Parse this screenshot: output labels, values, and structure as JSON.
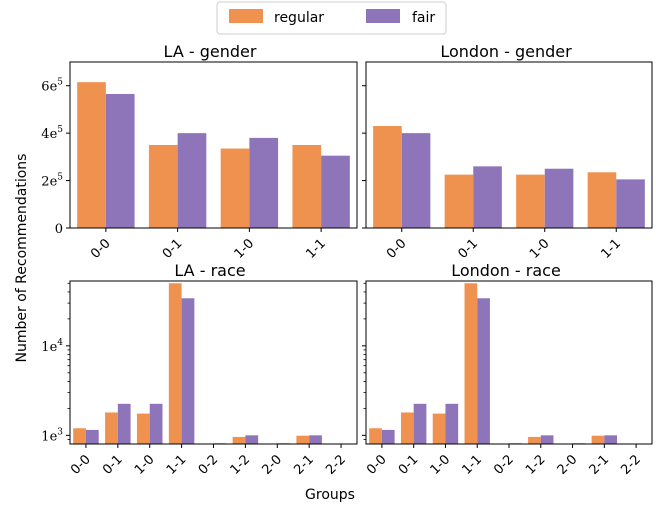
{
  "colors": {
    "regular": "#f0924f",
    "fair": "#8e75b9"
  },
  "chart_data": [
    {
      "type": "bar",
      "title": "LA - gender",
      "categories": [
        "0-0",
        "0-1",
        "1-0",
        "1-1"
      ],
      "series": [
        {
          "name": "regular",
          "values": [
            615000,
            350000,
            335000,
            350000
          ]
        },
        {
          "name": "fair",
          "values": [
            565000,
            400000,
            380000,
            305000
          ]
        }
      ],
      "ylim": [
        0,
        700000
      ],
      "yscale": "linear",
      "yticks": [
        0,
        200000,
        400000,
        600000
      ],
      "yticklabels": [
        "0",
        "2e",
        "4e",
        "6e"
      ],
      "ytickexp": [
        "",
        "5",
        "5",
        "5"
      ],
      "legend": "top-center"
    },
    {
      "type": "bar",
      "title": "London - gender",
      "categories": [
        "0-0",
        "0-1",
        "1-0",
        "1-1"
      ],
      "series": [
        {
          "name": "regular",
          "values": [
            430000,
            225000,
            225000,
            235000
          ]
        },
        {
          "name": "fair",
          "values": [
            400000,
            260000,
            250000,
            205000
          ]
        }
      ],
      "ylim": [
        0,
        700000
      ],
      "yscale": "linear",
      "sharey": true
    },
    {
      "type": "bar",
      "title": "LA - race",
      "categories": [
        "0-0",
        "0-1",
        "1-0",
        "1-1",
        "0-2",
        "1-2",
        "2-0",
        "2-1",
        "2-2"
      ],
      "series": [
        {
          "name": "regular",
          "values": [
            1200,
            1800,
            1750,
            50000,
            810,
            960,
            810,
            990,
            800
          ]
        },
        {
          "name": "fair",
          "values": [
            1150,
            2250,
            2250,
            34000,
            815,
            1000,
            815,
            1000,
            800
          ]
        }
      ],
      "ylim": [
        800,
        53000
      ],
      "yscale": "log",
      "yticks": [
        1000,
        10000
      ],
      "yticklabels": [
        "1e",
        "1e"
      ],
      "ytickexp": [
        "3",
        "4"
      ]
    },
    {
      "type": "bar",
      "title": "London - race",
      "categories": [
        "0-0",
        "0-1",
        "1-0",
        "1-1",
        "0-2",
        "1-2",
        "2-0",
        "2-1",
        "2-2"
      ],
      "series": [
        {
          "name": "regular",
          "values": [
            1200,
            1800,
            1750,
            50000,
            810,
            960,
            810,
            990,
            800
          ]
        },
        {
          "name": "fair",
          "values": [
            1150,
            2250,
            2250,
            34000,
            815,
            1000,
            815,
            1000,
            800
          ]
        }
      ],
      "ylim": [
        800,
        53000
      ],
      "yscale": "log",
      "sharey": true
    }
  ],
  "ylabel": "Number of Recommendations",
  "xlabel": "Groups",
  "legend": {
    "entries": [
      "regular",
      "fair"
    ]
  }
}
